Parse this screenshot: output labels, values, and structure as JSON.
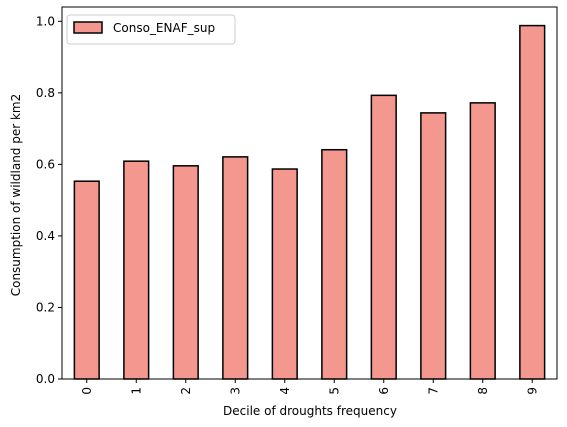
{
  "chart_data": {
    "type": "bar",
    "categories": [
      "0",
      "1",
      "2",
      "3",
      "4",
      "5",
      "6",
      "7",
      "8",
      "9"
    ],
    "series": [
      {
        "name": "Conso_ENAF_sup",
        "values": [
          0.553,
          0.609,
          0.596,
          0.621,
          0.587,
          0.641,
          0.793,
          0.744,
          0.772,
          0.988
        ]
      }
    ],
    "title": "",
    "xlabel": "Decile of droughts frequency",
    "ylabel": "Consumption of wildland per km2",
    "ylim": [
      0,
      1.04
    ],
    "yticks": [
      0.0,
      0.2,
      0.4,
      0.6,
      0.8,
      1.0
    ],
    "ytick_labels": [
      "0.0",
      "0.2",
      "0.4",
      "0.6",
      "0.8",
      "1.0"
    ],
    "grid": false,
    "legend_position": "upper left",
    "colors": {
      "bar_fill": "#F4978E",
      "bar_edge": "#000000",
      "axis": "#000000",
      "legend_border": "#cccccc"
    }
  }
}
